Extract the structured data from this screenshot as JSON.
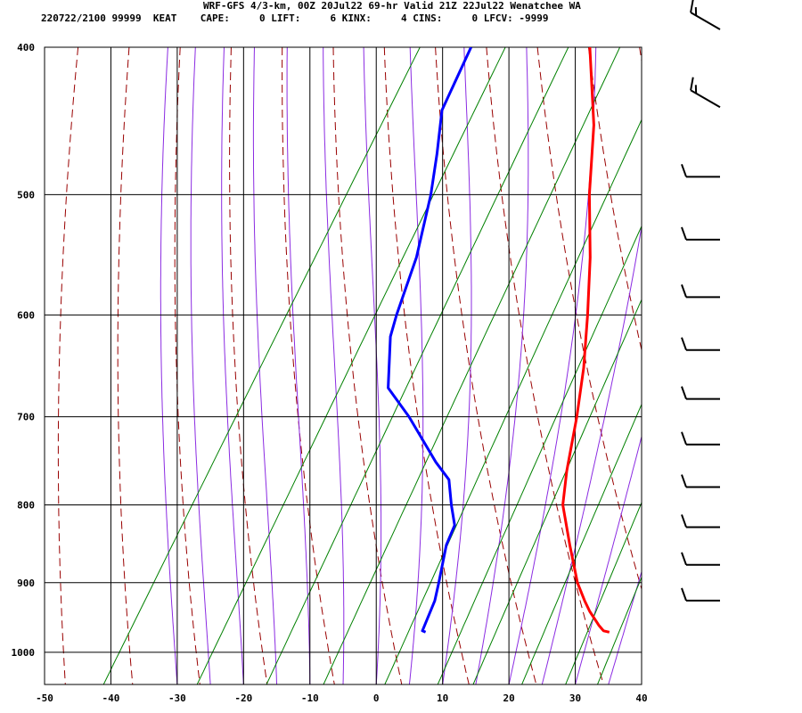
{
  "header": {
    "line1": "WRF-GFS 4/3-km, 00Z 20Jul22 69-hr Valid 21Z 22Jul22 Wenatchee WA",
    "line2": "220722/2100 99999  KEAT    CAPE:     0 LIFT:     6 KINX:     4 CINS:     0 LFCV: -9999"
  },
  "colors": {
    "temperature": "#ff0000",
    "dewpoint": "#0000ff",
    "dry_adiabat": "#990000",
    "moist_adiabat": "#8b2be2",
    "mixing_ratio": "#008000",
    "grid": "#000000"
  },
  "chart_data": {
    "type": "line",
    "subtype": "skew-t log-p sounding",
    "x_ticks": [
      -50,
      -40,
      -30,
      -20,
      -10,
      0,
      10,
      20,
      30,
      40
    ],
    "y_ticks": [
      400,
      500,
      600,
      700,
      800,
      900,
      1000
    ],
    "ylim": [
      1050,
      400
    ],
    "log_y": true,
    "series": [
      {
        "key": "temperature",
        "points": [
          [
            970,
            30.5
          ],
          [
            968,
            29.5
          ],
          [
            960,
            28.3
          ],
          [
            940,
            25.7
          ],
          [
            925,
            24.0
          ],
          [
            900,
            21.3
          ],
          [
            850,
            16.8
          ],
          [
            800,
            12.2
          ],
          [
            760,
            9.8
          ],
          [
            700,
            6.5
          ],
          [
            650,
            3.2
          ],
          [
            600,
            -0.9
          ],
          [
            550,
            -5.6
          ],
          [
            500,
            -11.3
          ],
          [
            450,
            -16.8
          ],
          [
            400,
            -24.3
          ]
        ]
      },
      {
        "key": "dewpoint",
        "points": [
          [
            970,
            2.8
          ],
          [
            968,
            2.2
          ],
          [
            925,
            1.4
          ],
          [
            900,
            0.4
          ],
          [
            850,
            -1.8
          ],
          [
            825,
            -2.3
          ],
          [
            800,
            -4.6
          ],
          [
            770,
            -7.2
          ],
          [
            750,
            -10.7
          ],
          [
            700,
            -18.8
          ],
          [
            670,
            -24.5
          ],
          [
            620,
            -28.7
          ],
          [
            600,
            -29.7
          ],
          [
            550,
            -31.8
          ],
          [
            520,
            -33.8
          ],
          [
            500,
            -35.2
          ],
          [
            470,
            -37.9
          ],
          [
            440,
            -41.0
          ],
          [
            400,
            -42.2
          ]
        ]
      }
    ],
    "wind_barbs": {
      "levels": [
        400,
        450,
        500,
        550,
        600,
        650,
        700,
        750,
        800,
        850,
        900,
        950
      ],
      "speed_kt": [
        15,
        15,
        10,
        10,
        10,
        10,
        10,
        10,
        10,
        10,
        10,
        10
      ],
      "direction_deg": [
        300,
        300,
        270,
        270,
        270,
        270,
        270,
        270,
        270,
        270,
        270,
        270
      ]
    }
  }
}
